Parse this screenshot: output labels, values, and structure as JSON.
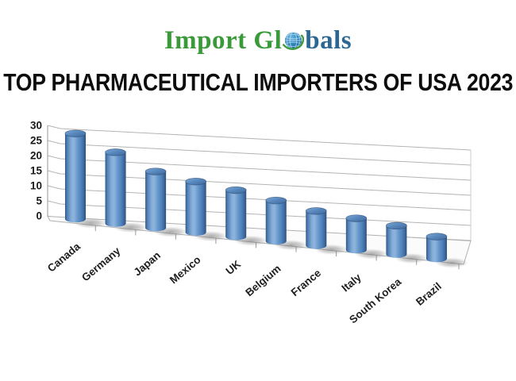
{
  "logo": {
    "text_primary": "Import Gl",
    "text_secondary": "bals",
    "primary_color": "#3a9a3a",
    "secondary_color": "#2c6693",
    "globe_icon": "globe-icon"
  },
  "title": "TOP PHARMACEUTICAL IMPORTERS OF USA 2023",
  "chart_data": {
    "type": "bar",
    "subtype": "3d-cylinder",
    "title": "TOP PHARMACEUTICAL IMPORTERS OF USA 2023",
    "categories": [
      "Canada",
      "Germany",
      "Japan",
      "Mexico",
      "UK",
      "Belgium",
      "France",
      "Italy",
      "South Korea",
      "Brazil"
    ],
    "values": [
      28,
      23,
      18,
      16,
      14.5,
      12.5,
      10.5,
      9.5,
      8.5,
      6.5
    ],
    "xlabel": "",
    "ylabel": "",
    "ylim": [
      0,
      30
    ],
    "yticks": [
      0,
      5,
      10,
      15,
      20,
      25,
      30
    ],
    "grid": true,
    "legend": false,
    "bar_color": "#4f81bd",
    "gridline_color": "#b4b4b4",
    "label_color": "#1f1f1f"
  }
}
